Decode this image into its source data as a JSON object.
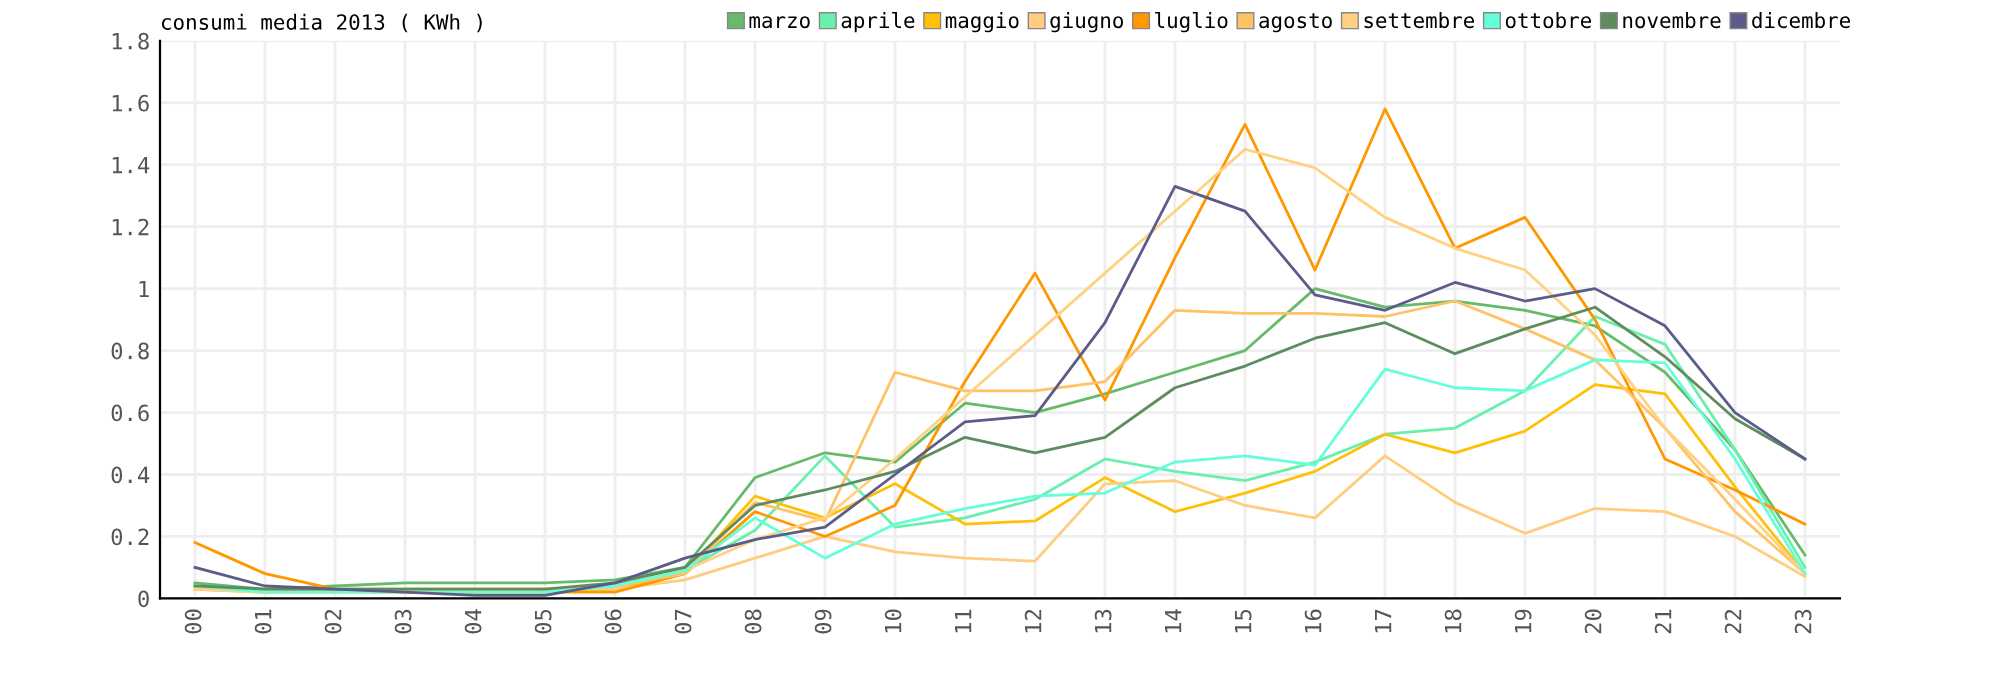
{
  "chart_data": {
    "type": "line",
    "title": "consumi media 2013 ( KWh )",
    "categories": [
      "00",
      "01",
      "02",
      "03",
      "04",
      "05",
      "06",
      "07",
      "08",
      "09",
      "10",
      "11",
      "12",
      "13",
      "14",
      "15",
      "16",
      "17",
      "18",
      "19",
      "20",
      "21",
      "22",
      "23"
    ],
    "ylim": [
      0,
      1.8
    ],
    "yticks": [
      0,
      {
        "value": 0.2,
        "label": "0.2"
      },
      {
        "value": 0.4,
        "label": "0.4"
      },
      {
        "value": 0.6,
        "label": "0.6"
      },
      {
        "value": 0.8,
        "label": "0.8"
      },
      1,
      {
        "value": 1.2,
        "label": "1.2"
      },
      {
        "value": 1.4,
        "label": "1.4"
      },
      {
        "value": 1.6,
        "label": "1.6"
      },
      {
        "value": 1.8,
        "label": "1.8"
      }
    ],
    "grid": true,
    "legend": "top right",
    "marker": "none",
    "line_style": "solid",
    "series": [
      {
        "name": "marzo",
        "color": "#66bb6a",
        "values": [
          0.05,
          0.03,
          0.04,
          0.05,
          0.05,
          0.05,
          0.06,
          0.1,
          0.39,
          0.47,
          0.44,
          0.63,
          0.6,
          0.66,
          0.73,
          0.8,
          1.0,
          0.94,
          0.96,
          0.93,
          0.88,
          0.73,
          0.48,
          0.14
        ]
      },
      {
        "name": "aprile",
        "color": "#69f0ae",
        "values": [
          0.04,
          0.02,
          0.03,
          0.03,
          0.03,
          0.03,
          0.04,
          0.09,
          0.22,
          0.46,
          0.23,
          0.26,
          0.32,
          0.45,
          0.41,
          0.38,
          0.44,
          0.53,
          0.55,
          0.67,
          0.91,
          0.82,
          0.48,
          0.1
        ]
      },
      {
        "name": "maggio",
        "color": "#ffc107",
        "values": [
          0.04,
          0.02,
          0.02,
          0.02,
          0.02,
          0.02,
          0.03,
          0.08,
          0.33,
          0.26,
          0.37,
          0.24,
          0.25,
          0.39,
          0.28,
          0.34,
          0.41,
          0.53,
          0.47,
          0.54,
          0.69,
          0.66,
          0.36,
          0.08
        ]
      },
      {
        "name": "giugno",
        "color": "#ffcc80",
        "values": [
          0.03,
          0.02,
          null,
          0.02,
          0.02,
          0.03,
          0.03,
          0.06,
          0.13,
          0.2,
          0.15,
          0.13,
          0.12,
          0.37,
          0.38,
          0.3,
          0.26,
          0.46,
          0.31,
          0.21,
          0.29,
          0.28,
          0.2,
          0.07
        ]
      },
      {
        "name": "luglio",
        "color": "#ff9800",
        "values": [
          0.18,
          0.08,
          0.03,
          0.02,
          0.02,
          0.02,
          0.02,
          0.08,
          0.28,
          0.2,
          0.3,
          0.7,
          1.05,
          0.64,
          1.1,
          1.53,
          1.06,
          1.58,
          1.13,
          1.23,
          0.9,
          0.45,
          0.35,
          0.24
        ]
      },
      {
        "name": "agosto",
        "color": "#ffc266",
        "values": [
          0.03,
          0.02,
          0.03,
          0.03,
          0.03,
          0.03,
          0.04,
          0.08,
          0.31,
          0.25,
          0.73,
          0.67,
          0.67,
          0.7,
          0.93,
          0.92,
          0.92,
          0.91,
          0.96,
          0.87,
          0.77,
          0.55,
          0.28,
          0.08
        ]
      },
      {
        "name": "settembre",
        "color": "#ffd180",
        "values": [
          0.03,
          0.02,
          null,
          0.03,
          0.03,
          0.03,
          0.04,
          0.09,
          0.19,
          0.26,
          0.45,
          0.65,
          0.85,
          1.05,
          1.25,
          1.45,
          1.39,
          1.23,
          1.13,
          1.06,
          0.85,
          0.55,
          0.32,
          0.08
        ]
      },
      {
        "name": "ottobre",
        "color": "#64ffda",
        "values": [
          0.04,
          0.02,
          0.02,
          0.02,
          0.02,
          0.02,
          0.04,
          0.09,
          0.26,
          0.13,
          0.24,
          0.29,
          0.33,
          0.34,
          0.44,
          0.46,
          0.43,
          0.74,
          0.68,
          0.67,
          0.77,
          0.76,
          0.45,
          0.08
        ]
      },
      {
        "name": "novembre",
        "color": "#5e8c5e",
        "values": [
          0.04,
          0.03,
          0.03,
          0.03,
          0.03,
          0.03,
          0.05,
          0.1,
          0.3,
          0.35,
          0.41,
          0.52,
          0.47,
          0.52,
          0.68,
          0.75,
          0.84,
          0.89,
          0.79,
          0.87,
          0.94,
          0.78,
          0.58,
          0.45
        ]
      },
      {
        "name": "dicembre",
        "color": "#5c5c8a",
        "values": [
          0.1,
          0.04,
          0.03,
          0.02,
          0.01,
          0.01,
          0.05,
          0.13,
          0.19,
          0.23,
          0.4,
          0.57,
          0.59,
          0.89,
          1.33,
          1.25,
          0.98,
          0.93,
          1.02,
          0.96,
          1.0,
          0.88,
          0.6,
          0.45
        ]
      }
    ]
  }
}
